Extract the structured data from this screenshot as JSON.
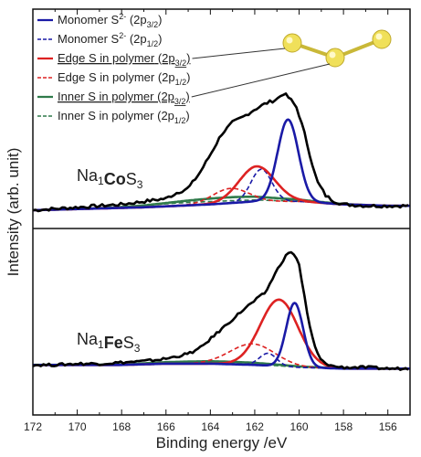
{
  "chart_data": {
    "type": "line",
    "xlabel": "Binding energy /eV",
    "ylabel": "Intensity (arb. unit)",
    "xlim": [
      172,
      155
    ],
    "x_reversed": true,
    "x_ticks": [
      172,
      170,
      168,
      166,
      164,
      162,
      160,
      158,
      156
    ],
    "y_ticks": false,
    "grid": false,
    "legend_position": "top-left",
    "colors": {
      "raw": "#000000",
      "monomer": "#1a1aa6",
      "edge": "#dd2222",
      "inner": "#2f7a4a",
      "molecule": "#f0e05a"
    },
    "legend": [
      {
        "base": "Monomer S",
        "sup": "2-",
        "orbital": "2p",
        "sub": "3/2",
        "style": "solid",
        "color_key": "monomer",
        "underline": false
      },
      {
        "base": "Monomer S",
        "sup": "2-",
        "orbital": "2p",
        "sub": "1/2",
        "style": "dashed",
        "color_key": "monomer",
        "underline": false
      },
      {
        "base": "Edge S in polymer",
        "sup": "",
        "orbital": "2p",
        "sub": "3/2",
        "style": "solid",
        "color_key": "edge",
        "underline": true
      },
      {
        "base": "Edge S in polymer",
        "sup": "",
        "orbital": "2p",
        "sub": "1/2",
        "style": "dashed",
        "color_key": "edge",
        "underline": false
      },
      {
        "base": "Inner S in polymer",
        "sup": "",
        "orbital": "2p",
        "sub": "3/2",
        "style": "solid",
        "color_key": "inner",
        "underline": true
      },
      {
        "base": "Inner S in polymer",
        "sup": "",
        "orbital": "2p",
        "sub": "1/2",
        "style": "dashed",
        "color_key": "inner",
        "underline": false
      }
    ],
    "panels": [
      {
        "label_parts": [
          {
            "t": "Na",
            "style": "normal"
          },
          {
            "t": "1",
            "style": "sub"
          },
          {
            "t": "Co",
            "style": "bold"
          },
          {
            "t": "S",
            "style": "normal"
          },
          {
            "t": "3",
            "style": "sub"
          }
        ],
        "baseline_x": [
          172,
          167,
          164,
          162,
          160,
          158,
          156,
          155
        ],
        "baseline_y": [
          0.0,
          0.02,
          0.04,
          0.06,
          0.06,
          0.04,
          0.03,
          0.03
        ],
        "components": [
          {
            "id": "monomer_3_2",
            "color_key": "monomer",
            "style": "solid",
            "center": 160.5,
            "fwhm": 1.1,
            "height": 0.56
          },
          {
            "id": "monomer_1_2",
            "color_key": "monomer",
            "style": "dashed",
            "center": 161.7,
            "fwhm": 1.1,
            "height": 0.22
          },
          {
            "id": "edge_3_2",
            "color_key": "edge",
            "style": "solid",
            "center": 161.9,
            "fwhm": 1.9,
            "height": 0.24
          },
          {
            "id": "edge_1_2",
            "color_key": "edge",
            "style": "dashed",
            "center": 163.1,
            "fwhm": 1.9,
            "height": 0.1
          },
          {
            "id": "inner_3_2",
            "color_key": "inner",
            "style": "solid",
            "center": 163.5,
            "fwhm": 5.5,
            "height": 0.04
          },
          {
            "id": "inner_1_2",
            "color_key": "inner",
            "style": "dashed",
            "center": 164.7,
            "fwhm": 5.5,
            "height": 0.02
          }
        ],
        "raw_x": [
          172,
          171,
          170,
          169,
          168,
          167,
          166,
          165.5,
          165,
          164.5,
          164,
          163.5,
          163,
          162.5,
          162,
          161.5,
          161,
          160.7,
          160.4,
          160.1,
          159.8,
          159.5,
          159.2,
          158.8,
          158.4,
          158,
          157,
          156,
          155
        ],
        "raw_y": [
          0.0,
          0.01,
          0.02,
          0.03,
          0.04,
          0.06,
          0.08,
          0.12,
          0.15,
          0.25,
          0.38,
          0.52,
          0.6,
          0.64,
          0.69,
          0.73,
          0.76,
          0.8,
          0.76,
          0.7,
          0.55,
          0.37,
          0.2,
          0.1,
          0.06,
          0.04,
          0.03,
          0.03,
          0.03
        ]
      },
      {
        "label_parts": [
          {
            "t": "Na",
            "style": "normal"
          },
          {
            "t": "1",
            "style": "sub"
          },
          {
            "t": "Fe",
            "style": "bold"
          },
          {
            "t": "S",
            "style": "normal"
          },
          {
            "t": "3",
            "style": "sub"
          }
        ],
        "baseline_x": [
          172,
          168,
          166,
          164,
          162,
          160,
          158,
          156,
          155
        ],
        "baseline_y": [
          0.05,
          0.05,
          0.06,
          0.06,
          0.05,
          0.03,
          0.02,
          0.02,
          0.02
        ],
        "components": [
          {
            "id": "monomer_3_2",
            "color_key": "monomer",
            "style": "solid",
            "center": 160.2,
            "fwhm": 0.9,
            "height": 0.52
          },
          {
            "id": "monomer_1_2",
            "color_key": "monomer",
            "style": "dashed",
            "center": 161.4,
            "fwhm": 0.9,
            "height": 0.1
          },
          {
            "id": "edge_3_2",
            "color_key": "edge",
            "style": "solid",
            "center": 160.9,
            "fwhm": 2.0,
            "height": 0.54
          },
          {
            "id": "edge_1_2",
            "color_key": "edge",
            "style": "dashed",
            "center": 162.1,
            "fwhm": 2.4,
            "height": 0.17
          },
          {
            "id": "inner_3_2",
            "color_key": "inner",
            "style": "solid",
            "center": 163.5,
            "fwhm": 6.0,
            "height": 0.02
          },
          {
            "id": "inner_1_2",
            "color_key": "inner",
            "style": "dashed",
            "center": 164.7,
            "fwhm": 6.0,
            "height": 0.01
          }
        ],
        "raw_x": [
          172,
          171,
          170,
          169,
          168,
          167,
          166,
          165,
          164.5,
          164,
          163.5,
          163,
          162.5,
          162,
          161.5,
          161.2,
          160.8,
          160.5,
          160.2,
          160,
          159.8,
          159.6,
          159.3,
          159,
          158.5,
          158,
          157,
          156,
          155
        ],
        "raw_y": [
          0.05,
          0.05,
          0.06,
          0.06,
          0.07,
          0.08,
          0.1,
          0.14,
          0.18,
          0.26,
          0.34,
          0.42,
          0.5,
          0.57,
          0.64,
          0.75,
          0.88,
          0.96,
          0.95,
          0.86,
          0.65,
          0.42,
          0.2,
          0.08,
          0.04,
          0.03,
          0.03,
          0.02,
          0.02
        ]
      }
    ]
  }
}
